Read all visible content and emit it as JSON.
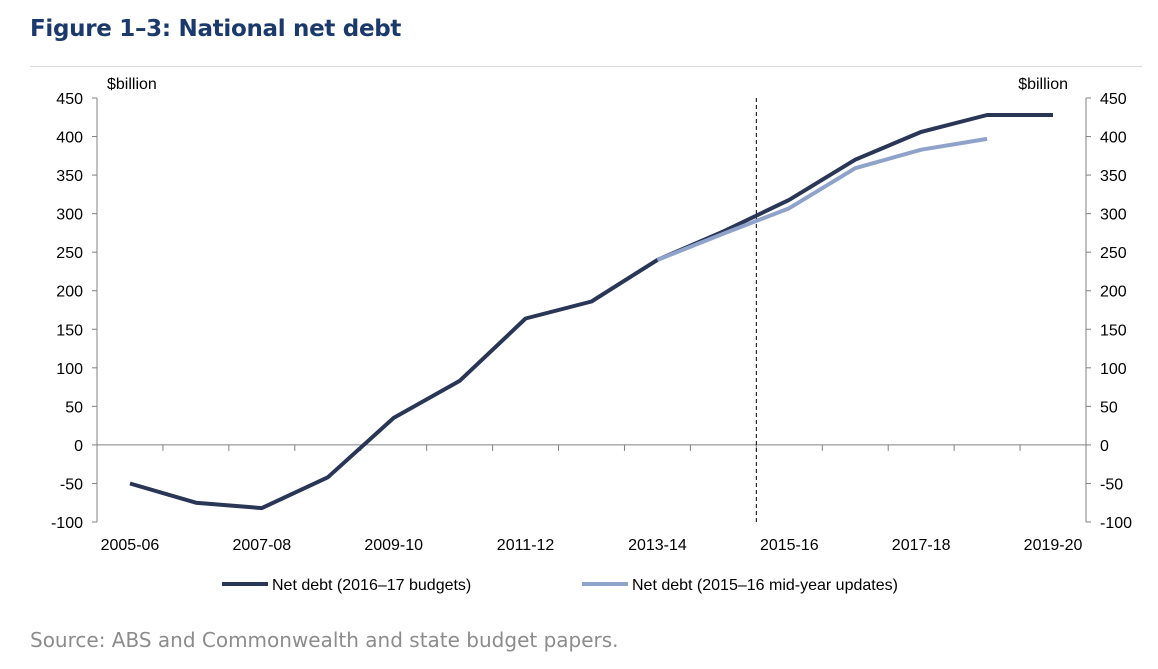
{
  "figure_title": "Figure 1–3: National net debt",
  "source": "Source: ABS and Commonwealth and state budget papers.",
  "colors": {
    "series_dark": "#2a3656",
    "series_light": "#8fa2c9",
    "title": "#1b3a6b"
  },
  "chart_data": {
    "type": "line",
    "title": "Figure 1–3: National net debt",
    "ylabel_left": "$billion",
    "ylabel_right": "$billion",
    "ylim": [
      -100,
      450
    ],
    "yticks": [
      -100,
      -50,
      0,
      50,
      100,
      150,
      200,
      250,
      300,
      350,
      400,
      450
    ],
    "categories": [
      "2005-06",
      "2006-07",
      "2007-08",
      "2008-09",
      "2009-10",
      "2010-11",
      "2011-12",
      "2012-13",
      "2013-14",
      "2014-15",
      "2015-16",
      "2016-17",
      "2017-18",
      "2018-19",
      "2019-20"
    ],
    "xtick_labels": [
      "2005-06",
      "2007-08",
      "2009-10",
      "2011-12",
      "2013-14",
      "2015-16",
      "2017-18",
      "2019-20"
    ],
    "vertical_marker_between": [
      "2014-15",
      "2015-16"
    ],
    "legend_position": "bottom",
    "series": [
      {
        "name": "Net debt (2016–17 budgets)",
        "color": "#2a3656",
        "values": [
          -50,
          -75,
          -82,
          -42,
          35,
          83,
          164,
          186,
          240,
          277,
          318,
          370,
          406,
          428,
          428
        ]
      },
      {
        "name": "Net debt (2015–16 mid-year updates)",
        "color": "#8fa2c9",
        "values": [
          null,
          null,
          null,
          null,
          null,
          null,
          null,
          null,
          240,
          274,
          307,
          359,
          383,
          397,
          null
        ]
      }
    ]
  }
}
